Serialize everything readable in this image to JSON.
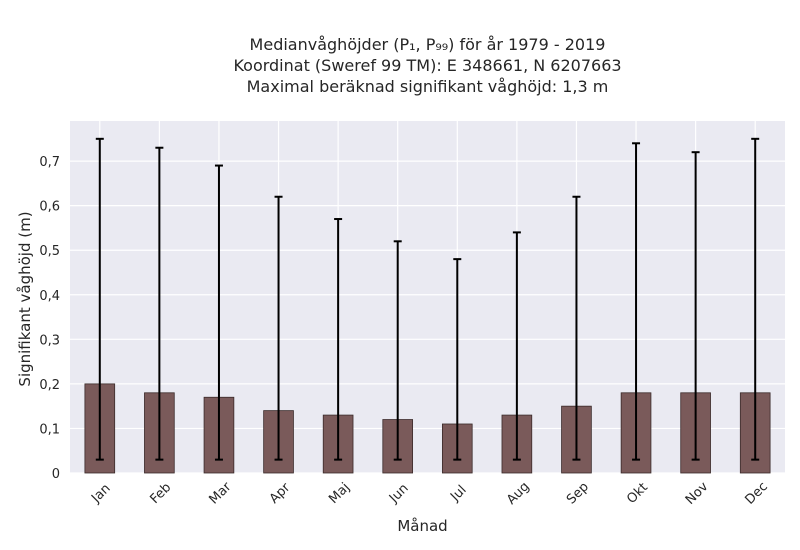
{
  "chart_data": {
    "type": "bar",
    "title_lines": [
      "Medianvåghöjder (P₁, P₉₉) för år 1979 - 2019",
      "Koordinat (Sweref 99 TM): E 348661, N 6207663",
      "Maximal beräknad signifikant våghöjd: 1,3 m"
    ],
    "xlabel": "Månad",
    "ylabel": "Signifikant våghöjd (m)",
    "categories": [
      "Jan",
      "Feb",
      "Mar",
      "Apr",
      "Maj",
      "Jun",
      "Jul",
      "Aug",
      "Sep",
      "Okt",
      "Nov",
      "Dec"
    ],
    "values": [
      0.2,
      0.18,
      0.17,
      0.14,
      0.13,
      0.12,
      0.11,
      0.13,
      0.15,
      0.18,
      0.18,
      0.18
    ],
    "error_low": [
      0.03,
      0.03,
      0.03,
      0.03,
      0.03,
      0.03,
      0.03,
      0.03,
      0.03,
      0.03,
      0.03,
      0.03
    ],
    "error_high": [
      0.75,
      0.73,
      0.69,
      0.62,
      0.57,
      0.52,
      0.48,
      0.54,
      0.62,
      0.74,
      0.72,
      0.75
    ],
    "yticks": [
      "0",
      "0,1",
      "0,2",
      "0,3",
      "0,4",
      "0,5",
      "0,6",
      "0,7"
    ],
    "ylim": [
      0,
      0.79
    ],
    "grid": true,
    "colors": {
      "bar": "#7a5a5a",
      "bar_edge": "#3a2a2a",
      "plot_background": "#eaeaf2",
      "grid": "#ffffff",
      "error_bar": "#000000"
    }
  }
}
